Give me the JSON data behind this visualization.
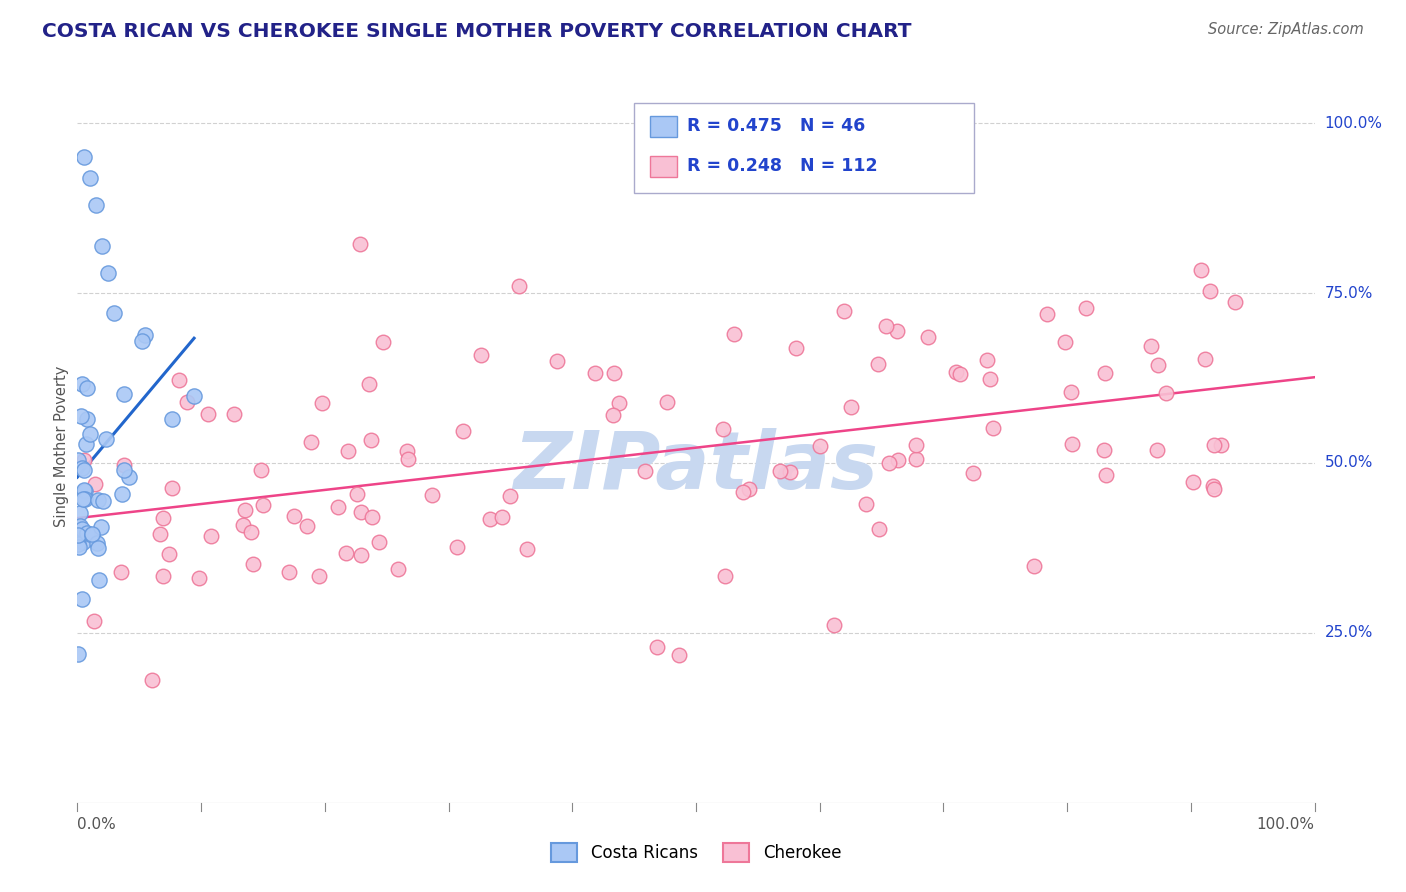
{
  "title": "COSTA RICAN VS CHEROKEE SINGLE MOTHER POVERTY CORRELATION CHART",
  "source": "Source: ZipAtlas.com",
  "ylabel": "Single Mother Poverty",
  "ytick_labels": [
    "25.0%",
    "50.0%",
    "75.0%",
    "100.0%"
  ],
  "watermark": "ZIPatlas",
  "blue_color": "#aac8f5",
  "pink_color": "#f9c0d4",
  "blue_edge_color": "#6699dd",
  "pink_edge_color": "#ee7799",
  "blue_line_color": "#2266cc",
  "pink_line_color": "#ee4488",
  "background_color": "#ffffff",
  "grid_color": "#cccccc",
  "title_color": "#222288",
  "watermark_color": "#c8d8f0",
  "legend_text_color": "#2244cc"
}
